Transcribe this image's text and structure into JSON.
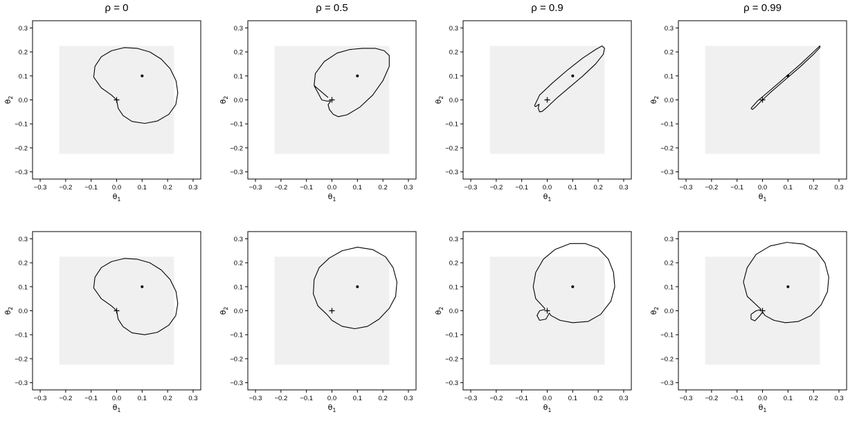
{
  "chart_data": [
    {
      "type": "line",
      "row": 0,
      "col": 0,
      "title": "ρ = 0",
      "xlabel": "θ1",
      "ylabel": "θ2",
      "xlim": [
        -0.33,
        0.33
      ],
      "ylim": [
        -0.33,
        0.33
      ],
      "xticks": [
        -0.3,
        -0.2,
        -0.1,
        0.0,
        0.1,
        0.2,
        0.3
      ],
      "yticks": [
        -0.3,
        -0.2,
        -0.1,
        0.0,
        0.1,
        0.2,
        0.3
      ],
      "shaded_region": {
        "x": [
          -0.225,
          0.225
        ],
        "y": [
          -0.225,
          0.225
        ],
        "color": "#f0f0f0"
      },
      "points": [
        {
          "marker": "plus",
          "x": 0.0,
          "y": 0.0
        },
        {
          "marker": "dot",
          "x": 0.1,
          "y": 0.1
        }
      ],
      "curve": [
        [
          0.0,
          0.0
        ],
        [
          -0.02,
          0.02
        ],
        [
          -0.06,
          0.05
        ],
        [
          -0.09,
          0.095
        ],
        [
          -0.085,
          0.14
        ],
        [
          -0.06,
          0.18
        ],
        [
          -0.02,
          0.205
        ],
        [
          0.03,
          0.218
        ],
        [
          0.08,
          0.215
        ],
        [
          0.13,
          0.2
        ],
        [
          0.175,
          0.17
        ],
        [
          0.21,
          0.13
        ],
        [
          0.233,
          0.08
        ],
        [
          0.24,
          0.03
        ],
        [
          0.232,
          -0.02
        ],
        [
          0.205,
          -0.06
        ],
        [
          0.16,
          -0.088
        ],
        [
          0.11,
          -0.098
        ],
        [
          0.06,
          -0.09
        ],
        [
          0.025,
          -0.065
        ],
        [
          0.006,
          -0.035
        ],
        [
          0.0,
          0.0
        ]
      ]
    },
    {
      "type": "line",
      "row": 0,
      "col": 1,
      "title": "ρ = 0.5",
      "xlabel": "θ1",
      "ylabel": "θ2",
      "xlim": [
        -0.33,
        0.33
      ],
      "ylim": [
        -0.33,
        0.33
      ],
      "xticks": [
        -0.3,
        -0.2,
        -0.1,
        0.0,
        0.1,
        0.2,
        0.3
      ],
      "yticks": [
        -0.3,
        -0.2,
        -0.1,
        0.0,
        0.1,
        0.2,
        0.3
      ],
      "shaded_region": {
        "x": [
          -0.225,
          0.225
        ],
        "y": [
          -0.225,
          0.225
        ],
        "color": "#f0f0f0"
      },
      "points": [
        {
          "marker": "plus",
          "x": 0.0,
          "y": 0.0
        },
        {
          "marker": "dot",
          "x": 0.1,
          "y": 0.1
        }
      ],
      "curve": [
        [
          -0.015,
          0.01
        ],
        [
          -0.07,
          0.06
        ],
        [
          -0.065,
          0.11
        ],
        [
          -0.03,
          0.16
        ],
        [
          0.02,
          0.195
        ],
        [
          0.07,
          0.21
        ],
        [
          0.12,
          0.215
        ],
        [
          0.17,
          0.215
        ],
        [
          0.205,
          0.205
        ],
        [
          0.225,
          0.185
        ],
        [
          0.225,
          0.14
        ],
        [
          0.2,
          0.08
        ],
        [
          0.16,
          0.02
        ],
        [
          0.11,
          -0.03
        ],
        [
          0.06,
          -0.062
        ],
        [
          0.025,
          -0.07
        ],
        [
          0.005,
          -0.06
        ],
        [
          -0.01,
          -0.04
        ],
        [
          -0.015,
          -0.02
        ],
        [
          -0.005,
          -0.005
        ],
        [
          -0.02,
          -0.005
        ],
        [
          -0.04,
          0.0
        ],
        [
          -0.07,
          0.06
        ]
      ]
    },
    {
      "type": "line",
      "row": 0,
      "col": 2,
      "title": "ρ = 0.9",
      "xlabel": "θ1",
      "ylabel": "θ2",
      "xlim": [
        -0.33,
        0.33
      ],
      "ylim": [
        -0.33,
        0.33
      ],
      "xticks": [
        -0.3,
        -0.2,
        -0.1,
        0.0,
        0.1,
        0.2,
        0.3
      ],
      "yticks": [
        -0.3,
        -0.2,
        -0.1,
        0.0,
        0.1,
        0.2,
        0.3
      ],
      "shaded_region": {
        "x": [
          -0.225,
          0.225
        ],
        "y": [
          -0.225,
          0.225
        ],
        "color": "#f0f0f0"
      },
      "points": [
        {
          "marker": "plus",
          "x": 0.0,
          "y": 0.0
        },
        {
          "marker": "dot",
          "x": 0.1,
          "y": 0.1
        }
      ],
      "curve": [
        [
          -0.05,
          -0.025
        ],
        [
          -0.03,
          0.02
        ],
        [
          0.02,
          0.07
        ],
        [
          0.08,
          0.125
        ],
        [
          0.14,
          0.175
        ],
        [
          0.19,
          0.21
        ],
        [
          0.215,
          0.225
        ],
        [
          0.225,
          0.215
        ],
        [
          0.22,
          0.19
        ],
        [
          0.19,
          0.15
        ],
        [
          0.14,
          0.1
        ],
        [
          0.09,
          0.055
        ],
        [
          0.04,
          0.01
        ],
        [
          0.0,
          -0.03
        ],
        [
          -0.02,
          -0.048
        ],
        [
          -0.03,
          -0.05
        ],
        [
          -0.035,
          -0.035
        ],
        [
          -0.032,
          -0.018
        ],
        [
          -0.045,
          -0.028
        ],
        [
          -0.05,
          -0.025
        ]
      ]
    },
    {
      "type": "line",
      "row": 0,
      "col": 3,
      "title": "ρ = 0.99",
      "xlabel": "θ1",
      "ylabel": "θ2",
      "xlim": [
        -0.33,
        0.33
      ],
      "ylim": [
        -0.33,
        0.33
      ],
      "xticks": [
        -0.3,
        -0.2,
        -0.1,
        0.0,
        0.1,
        0.2,
        0.3
      ],
      "yticks": [
        -0.3,
        -0.2,
        -0.1,
        0.0,
        0.1,
        0.2,
        0.3
      ],
      "shaded_region": {
        "x": [
          -0.225,
          0.225
        ],
        "y": [
          -0.225,
          0.225
        ],
        "color": "#f0f0f0"
      },
      "points": [
        {
          "marker": "plus",
          "x": 0.0,
          "y": 0.0
        },
        {
          "marker": "dot",
          "x": 0.1,
          "y": 0.1
        }
      ],
      "curve": [
        [
          -0.045,
          -0.035
        ],
        [
          -0.02,
          -0.005
        ],
        [
          0.03,
          0.04
        ],
        [
          0.09,
          0.095
        ],
        [
          0.15,
          0.15
        ],
        [
          0.2,
          0.2
        ],
        [
          0.225,
          0.225
        ],
        [
          0.225,
          0.218
        ],
        [
          0.2,
          0.19
        ],
        [
          0.15,
          0.14
        ],
        [
          0.09,
          0.085
        ],
        [
          0.03,
          0.03
        ],
        [
          -0.01,
          -0.01
        ],
        [
          -0.03,
          -0.032
        ],
        [
          -0.04,
          -0.04
        ],
        [
          -0.045,
          -0.035
        ]
      ]
    },
    {
      "type": "line",
      "row": 1,
      "col": 0,
      "title": "",
      "xlabel": "θ1",
      "ylabel": "θ2",
      "xlim": [
        -0.33,
        0.33
      ],
      "ylim": [
        -0.33,
        0.33
      ],
      "xticks": [
        -0.3,
        -0.2,
        -0.1,
        0.0,
        0.1,
        0.2,
        0.3
      ],
      "yticks": [
        -0.3,
        -0.2,
        -0.1,
        0.0,
        0.1,
        0.2,
        0.3
      ],
      "shaded_region": {
        "x": [
          -0.225,
          0.225
        ],
        "y": [
          -0.225,
          0.225
        ],
        "color": "#f0f0f0"
      },
      "points": [
        {
          "marker": "plus",
          "x": 0.0,
          "y": 0.0
        },
        {
          "marker": "dot",
          "x": 0.1,
          "y": 0.1
        }
      ],
      "curve": [
        [
          0.0,
          0.0
        ],
        [
          -0.02,
          0.02
        ],
        [
          -0.06,
          0.05
        ],
        [
          -0.09,
          0.095
        ],
        [
          -0.085,
          0.14
        ],
        [
          -0.06,
          0.18
        ],
        [
          -0.02,
          0.205
        ],
        [
          0.03,
          0.218
        ],
        [
          0.08,
          0.215
        ],
        [
          0.13,
          0.2
        ],
        [
          0.175,
          0.17
        ],
        [
          0.21,
          0.13
        ],
        [
          0.233,
          0.08
        ],
        [
          0.24,
          0.03
        ],
        [
          0.232,
          -0.02
        ],
        [
          0.205,
          -0.06
        ],
        [
          0.16,
          -0.09
        ],
        [
          0.11,
          -0.1
        ],
        [
          0.06,
          -0.092
        ],
        [
          0.025,
          -0.066
        ],
        [
          0.006,
          -0.035
        ],
        [
          0.0,
          0.0
        ]
      ]
    },
    {
      "type": "line",
      "row": 1,
      "col": 1,
      "title": "",
      "xlabel": "θ1",
      "ylabel": "θ2",
      "xlim": [
        -0.33,
        0.33
      ],
      "ylim": [
        -0.33,
        0.33
      ],
      "xticks": [
        -0.3,
        -0.2,
        -0.1,
        0.0,
        0.1,
        0.2,
        0.3
      ],
      "yticks": [
        -0.3,
        -0.2,
        -0.1,
        0.0,
        0.1,
        0.2,
        0.3
      ],
      "shaded_region": {
        "x": [
          -0.225,
          0.225
        ],
        "y": [
          -0.225,
          0.225
        ],
        "color": "#f0f0f0"
      },
      "points": [
        {
          "marker": "plus",
          "x": 0.0,
          "y": 0.0
        },
        {
          "marker": "dot",
          "x": 0.1,
          "y": 0.1
        }
      ],
      "curve": [
        [
          -0.02,
          -0.015
        ],
        [
          -0.055,
          0.02
        ],
        [
          -0.073,
          0.07
        ],
        [
          -0.07,
          0.13
        ],
        [
          -0.05,
          0.18
        ],
        [
          -0.01,
          0.22
        ],
        [
          0.04,
          0.25
        ],
        [
          0.1,
          0.265
        ],
        [
          0.16,
          0.255
        ],
        [
          0.21,
          0.225
        ],
        [
          0.24,
          0.18
        ],
        [
          0.255,
          0.12
        ],
        [
          0.25,
          0.06
        ],
        [
          0.225,
          0.01
        ],
        [
          0.185,
          -0.035
        ],
        [
          0.14,
          -0.065
        ],
        [
          0.09,
          -0.075
        ],
        [
          0.04,
          -0.065
        ],
        [
          0.0,
          -0.04
        ],
        [
          -0.02,
          -0.015
        ]
      ]
    },
    {
      "type": "line",
      "row": 1,
      "col": 2,
      "title": "",
      "xlabel": "θ1",
      "ylabel": "θ2",
      "xlim": [
        -0.33,
        0.33
      ],
      "ylim": [
        -0.33,
        0.33
      ],
      "xticks": [
        -0.3,
        -0.2,
        -0.1,
        0.0,
        0.1,
        0.2,
        0.3
      ],
      "yticks": [
        -0.3,
        -0.2,
        -0.1,
        0.0,
        0.1,
        0.2,
        0.3
      ],
      "shaded_region": {
        "x": [
          -0.225,
          0.225
        ],
        "y": [
          -0.225,
          0.225
        ],
        "color": "#f0f0f0"
      },
      "points": [
        {
          "marker": "plus",
          "x": 0.0,
          "y": 0.0
        },
        {
          "marker": "dot",
          "x": 0.1,
          "y": 0.1
        }
      ],
      "curve": [
        [
          -0.01,
          0.01
        ],
        [
          -0.045,
          0.05
        ],
        [
          -0.055,
          0.1
        ],
        [
          -0.045,
          0.16
        ],
        [
          -0.015,
          0.215
        ],
        [
          0.03,
          0.255
        ],
        [
          0.09,
          0.28
        ],
        [
          0.15,
          0.28
        ],
        [
          0.2,
          0.26
        ],
        [
          0.24,
          0.215
        ],
        [
          0.26,
          0.16
        ],
        [
          0.265,
          0.1
        ],
        [
          0.25,
          0.04
        ],
        [
          0.21,
          -0.015
        ],
        [
          0.16,
          -0.045
        ],
        [
          0.1,
          -0.05
        ],
        [
          0.05,
          -0.04
        ],
        [
          0.015,
          -0.02
        ],
        [
          0.008,
          -0.01
        ],
        [
          -0.005,
          -0.035
        ],
        [
          -0.03,
          -0.04
        ],
        [
          -0.04,
          -0.02
        ],
        [
          -0.03,
          0.0
        ],
        [
          -0.01,
          0.005
        ],
        [
          -0.01,
          0.01
        ]
      ]
    },
    {
      "type": "line",
      "row": 1,
      "col": 3,
      "title": "",
      "xlabel": "θ1",
      "ylabel": "θ2",
      "xlim": [
        -0.33,
        0.33
      ],
      "ylim": [
        -0.33,
        0.33
      ],
      "xticks": [
        -0.3,
        -0.2,
        -0.1,
        0.0,
        0.1,
        0.2,
        0.3
      ],
      "yticks": [
        -0.3,
        -0.2,
        -0.1,
        0.0,
        0.1,
        0.2,
        0.3
      ],
      "shaded_region": {
        "x": [
          -0.225,
          0.225
        ],
        "y": [
          -0.225,
          0.225
        ],
        "color": "#f0f0f0"
      },
      "points": [
        {
          "marker": "plus",
          "x": 0.0,
          "y": 0.0
        },
        {
          "marker": "dot",
          "x": 0.1,
          "y": 0.1
        }
      ],
      "curve": [
        [
          -0.005,
          0.005
        ],
        [
          -0.06,
          0.06
        ],
        [
          -0.075,
          0.12
        ],
        [
          -0.06,
          0.18
        ],
        [
          -0.025,
          0.235
        ],
        [
          0.03,
          0.27
        ],
        [
          0.095,
          0.285
        ],
        [
          0.16,
          0.278
        ],
        [
          0.21,
          0.25
        ],
        [
          0.245,
          0.2
        ],
        [
          0.26,
          0.14
        ],
        [
          0.255,
          0.08
        ],
        [
          0.23,
          0.025
        ],
        [
          0.19,
          -0.02
        ],
        [
          0.14,
          -0.045
        ],
        [
          0.09,
          -0.05
        ],
        [
          0.045,
          -0.04
        ],
        [
          0.01,
          -0.02
        ],
        [
          0.0,
          -0.005
        ],
        [
          -0.01,
          -0.02
        ],
        [
          -0.03,
          -0.042
        ],
        [
          -0.045,
          -0.035
        ],
        [
          -0.045,
          -0.015
        ],
        [
          -0.025,
          0.0
        ],
        [
          -0.005,
          0.005
        ]
      ]
    }
  ]
}
